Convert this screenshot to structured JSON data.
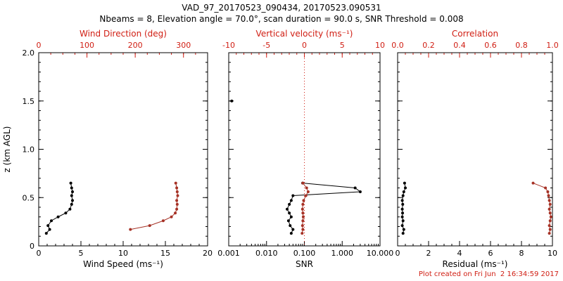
{
  "header": {
    "title": "VAD_97_20170523_090434, 20170523.090531",
    "subtitle": "Nbeams = 8, Elevation angle = 70.0°, scan duration = 90.0 s, SNR Threshold = 0.008"
  },
  "footer": {
    "created": "Plot created on Fri Jun  2 16:34:59 2017"
  },
  "colors": {
    "black": "#000000",
    "axis_red": "#d01d12",
    "data_red": "#a63226",
    "background": "#ffffff"
  },
  "chart_data": [
    {
      "type": "line",
      "name": "wind",
      "xlabel": "Wind Speed (ms⁻¹)",
      "xlabel_top": "Wind Direction (deg)",
      "ylabel": "z (km AGL)",
      "x_bottom": {
        "min": 0,
        "max": 20,
        "ticks": [
          0,
          5,
          10,
          15,
          20
        ],
        "labels": [
          "0",
          "5",
          "10",
          "15",
          "20"
        ],
        "minor_step": 1
      },
      "x_top": {
        "min": 0,
        "max": 350,
        "ticks": [
          0,
          100,
          200,
          300
        ],
        "labels": [
          "0",
          "100",
          "200",
          "300"
        ],
        "minor_step": 25
      },
      "y": {
        "min": 0,
        "max": 2,
        "ticks": [
          0,
          0.5,
          1,
          1.5,
          2
        ],
        "labels": [
          "0",
          "0.5",
          "1.0",
          "1.5",
          "2.0"
        ],
        "minor_step": 0.1,
        "show_labels": true
      },
      "series": [
        {
          "name": "wind-speed",
          "axis": "bottom",
          "color": "black",
          "points": [
            [
              0.9,
              0.13
            ],
            [
              1.3,
              0.17
            ],
            [
              1.1,
              0.21
            ],
            [
              1.5,
              0.26
            ],
            [
              2.3,
              0.3
            ],
            [
              3.2,
              0.34
            ],
            [
              3.7,
              0.38
            ],
            [
              3.9,
              0.43
            ],
            [
              4.0,
              0.47
            ],
            [
              3.9,
              0.52
            ],
            [
              4.0,
              0.56
            ],
            [
              3.9,
              0.6
            ],
            [
              3.8,
              0.65
            ]
          ]
        },
        {
          "name": "wind-direction",
          "axis": "top",
          "color": "data_red",
          "points": [
            [
              190,
              0.17
            ],
            [
              230,
              0.21
            ],
            [
              258,
              0.26
            ],
            [
              275,
              0.3
            ],
            [
              283,
              0.34
            ],
            [
              286,
              0.38
            ],
            [
              287,
              0.43
            ],
            [
              286,
              0.47
            ],
            [
              288,
              0.52
            ],
            [
              287,
              0.56
            ],
            [
              286,
              0.6
            ],
            [
              284,
              0.65
            ]
          ]
        }
      ]
    },
    {
      "type": "line",
      "name": "snr",
      "xlabel": "SNR",
      "xlabel_top": "Vertical velocity (ms⁻¹)",
      "ylabel": "",
      "x_bottom": {
        "scale": "log",
        "min": 0.001,
        "max": 10,
        "ticks": [
          0.001,
          0.01,
          0.1,
          1,
          10
        ],
        "labels": [
          "0.001",
          "0.010",
          "0.100",
          "1.000",
          "10.000"
        ]
      },
      "x_top": {
        "min": -10,
        "max": 10,
        "ticks": [
          -10,
          -5,
          0,
          5,
          10
        ],
        "labels": [
          "-10",
          "-5",
          "0",
          "5",
          "10"
        ],
        "minor_step": 1
      },
      "y": {
        "min": 0,
        "max": 2,
        "ticks": [
          0,
          0.5,
          1,
          1.5,
          2
        ],
        "labels": [
          "0",
          "0.5",
          "1.0",
          "1.5",
          "2.0"
        ],
        "minor_step": 0.1,
        "show_labels": false
      },
      "refline_top": 0,
      "series": [
        {
          "name": "snr-profile",
          "axis": "bottom",
          "color": "black",
          "points": [
            [
              0.045,
              0.13
            ],
            [
              0.05,
              0.17
            ],
            [
              0.042,
              0.21
            ],
            [
              0.038,
              0.26
            ],
            [
              0.045,
              0.3
            ],
            [
              0.04,
              0.34
            ],
            [
              0.035,
              0.38
            ],
            [
              0.04,
              0.43
            ],
            [
              0.045,
              0.47
            ],
            [
              0.05,
              0.52
            ],
            [
              3.0,
              0.56
            ],
            [
              2.2,
              0.6
            ],
            [
              0.09,
              0.65
            ]
          ]
        },
        {
          "name": "snr-isolated-point",
          "axis": "bottom",
          "color": "black",
          "line": false,
          "points": [
            [
              0.0012,
              1.5
            ]
          ]
        },
        {
          "name": "vertical-velocity",
          "axis": "top",
          "color": "data_red",
          "points": [
            [
              -0.3,
              0.13
            ],
            [
              -0.2,
              0.17
            ],
            [
              -0.25,
              0.21
            ],
            [
              -0.2,
              0.26
            ],
            [
              -0.15,
              0.3
            ],
            [
              -0.2,
              0.34
            ],
            [
              -0.25,
              0.38
            ],
            [
              -0.2,
              0.43
            ],
            [
              -0.1,
              0.47
            ],
            [
              0.2,
              0.52
            ],
            [
              0.5,
              0.56
            ],
            [
              0.3,
              0.6
            ],
            [
              -0.2,
              0.65
            ]
          ]
        }
      ]
    },
    {
      "type": "line",
      "name": "residual",
      "xlabel": "Residual (ms⁻¹)",
      "xlabel_top": "Correlation",
      "ylabel": "",
      "x_bottom": {
        "min": 0,
        "max": 10,
        "ticks": [
          0,
          2,
          4,
          6,
          8,
          10
        ],
        "labels": [
          "0",
          "2",
          "4",
          "6",
          "8",
          "10"
        ],
        "minor_step": 0.5
      },
      "x_top": {
        "min": 0,
        "max": 1,
        "ticks": [
          0,
          0.2,
          0.4,
          0.6,
          0.8,
          1
        ],
        "labels": [
          "0.0",
          "0.2",
          "0.4",
          "0.6",
          "0.8",
          "1.0"
        ],
        "minor_step": 0.05
      },
      "y": {
        "min": 0,
        "max": 2,
        "ticks": [
          0,
          0.5,
          1,
          1.5,
          2
        ],
        "labels": [
          "0",
          "0.5",
          "1.0",
          "1.5",
          "2.0"
        ],
        "minor_step": 0.1,
        "show_labels": false
      },
      "series": [
        {
          "name": "residual",
          "axis": "bottom",
          "color": "black",
          "points": [
            [
              0.35,
              0.13
            ],
            [
              0.4,
              0.17
            ],
            [
              0.3,
              0.21
            ],
            [
              0.35,
              0.26
            ],
            [
              0.3,
              0.3
            ],
            [
              0.32,
              0.34
            ],
            [
              0.3,
              0.38
            ],
            [
              0.33,
              0.43
            ],
            [
              0.3,
              0.47
            ],
            [
              0.35,
              0.52
            ],
            [
              0.4,
              0.56
            ],
            [
              0.5,
              0.6
            ],
            [
              0.45,
              0.65
            ]
          ]
        },
        {
          "name": "correlation",
          "axis": "top",
          "color": "data_red",
          "points": [
            [
              0.98,
              0.13
            ],
            [
              0.985,
              0.17
            ],
            [
              0.98,
              0.21
            ],
            [
              0.985,
              0.26
            ],
            [
              0.99,
              0.3
            ],
            [
              0.985,
              0.34
            ],
            [
              0.98,
              0.38
            ],
            [
              0.985,
              0.43
            ],
            [
              0.98,
              0.47
            ],
            [
              0.975,
              0.52
            ],
            [
              0.97,
              0.56
            ],
            [
              0.955,
              0.6
            ],
            [
              0.875,
              0.65
            ]
          ]
        }
      ]
    }
  ]
}
